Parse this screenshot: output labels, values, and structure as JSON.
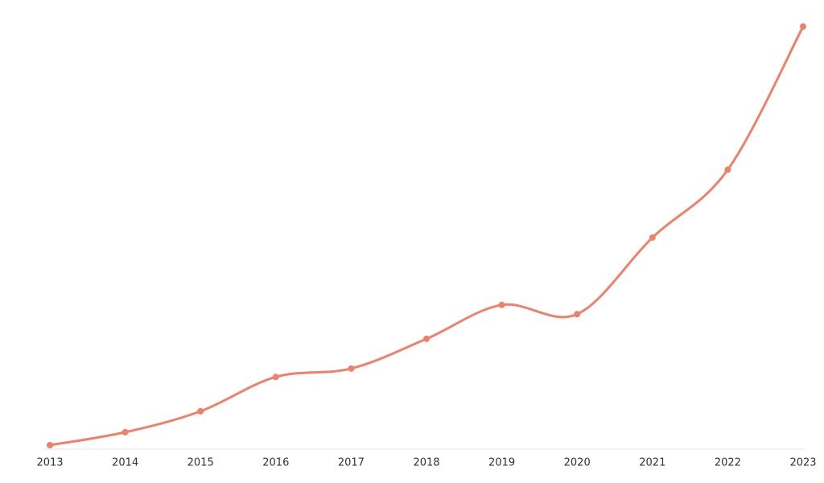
{
  "chart_data": {
    "type": "line",
    "categories": [
      "2013",
      "2014",
      "2015",
      "2016",
      "2017",
      "2018",
      "2019",
      "2020",
      "2021",
      "2022",
      "2023"
    ],
    "values": [
      0,
      3.1,
      8.1,
      16.3,
      18.3,
      25.4,
      33.5,
      31.3,
      49.6,
      65.8,
      100
    ],
    "color": "#f0806a",
    "ylim": [
      0,
      100
    ]
  }
}
